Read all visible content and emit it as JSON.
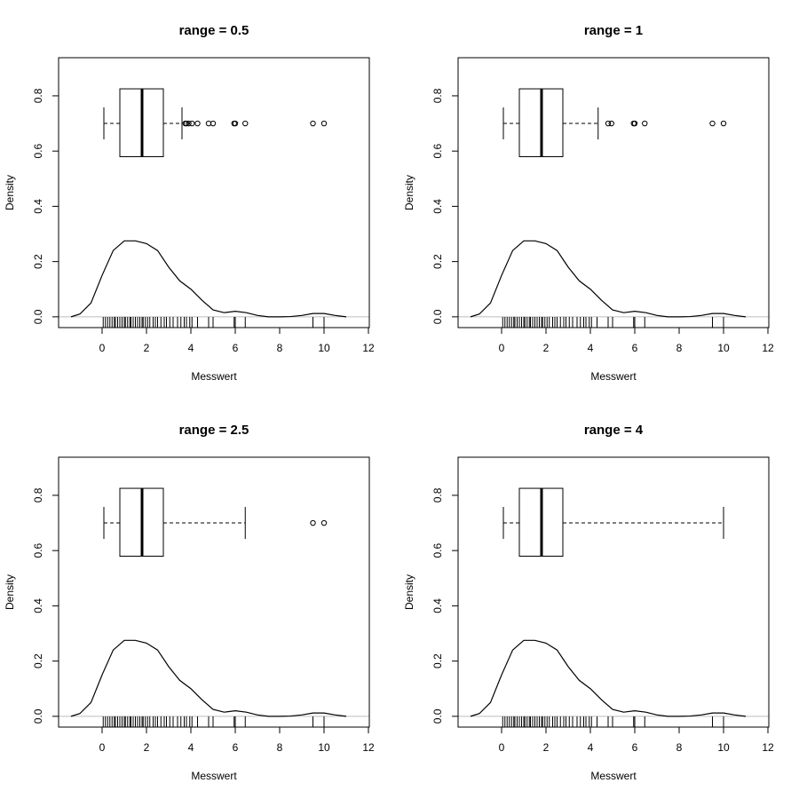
{
  "chart_data": [
    {
      "type": "density",
      "title": "range = 0.5",
      "xlabel": "Messwert",
      "ylabel": "Density",
      "xlim": [
        -1.96,
        12.04
      ],
      "ylim": [
        -0.039,
        0.938
      ],
      "xticks": [
        0,
        2,
        4,
        6,
        8,
        10,
        12
      ],
      "yticks": [
        {
          "value": 0,
          "label": "0.0"
        },
        0.2,
        0.4,
        0.6,
        0.8
      ],
      "x": [
        -1.4,
        -1,
        -0.5,
        0,
        0.5,
        1,
        1.5,
        2,
        2.5,
        3,
        3.5,
        4,
        4.5,
        5,
        5.5,
        6,
        6.5,
        7,
        7.5,
        8,
        8.5,
        9,
        9.5,
        10,
        10.5,
        11
      ],
      "values": [
        0,
        0.01,
        0.05,
        0.15,
        0.24,
        0.275,
        0.275,
        0.265,
        0.24,
        0.18,
        0.13,
        0.1,
        0.06,
        0.025,
        0.015,
        0.02,
        0.015,
        0.005,
        0,
        0,
        0.001,
        0.005,
        0.012,
        0.012,
        0.005,
        0
      ],
      "rug": [
        0.05,
        0.15,
        0.25,
        0.35,
        0.45,
        0.55,
        0.6,
        0.7,
        0.8,
        0.9,
        1.0,
        1.05,
        1.15,
        1.25,
        1.3,
        1.4,
        1.5,
        1.6,
        1.7,
        1.8,
        1.85,
        1.95,
        2.05,
        2.15,
        2.3,
        2.4,
        2.5,
        2.65,
        2.8,
        2.9,
        3.05,
        3.2,
        3.4,
        3.55,
        3.7,
        3.8,
        3.95,
        4.05,
        4.3,
        4.8,
        5.0,
        5.95,
        6.0,
        6.45,
        9.5,
        10.0
      ],
      "boxplot": {
        "at": 0.7,
        "whisker_low": 0.08,
        "q1": 0.8,
        "median": 1.8,
        "q3": 2.76,
        "whisker_high": 3.6,
        "outliers": [
          3.75,
          3.8,
          3.9,
          4.05,
          4.3,
          4.8,
          5.0,
          5.95,
          6.0,
          6.45,
          9.5,
          10.0
        ]
      }
    },
    {
      "type": "density",
      "title": "range = 1",
      "xlabel": "Messwert",
      "ylabel": "Density",
      "xlim": [
        -1.96,
        12.04
      ],
      "ylim": [
        -0.039,
        0.938
      ],
      "xticks": [
        0,
        2,
        4,
        6,
        8,
        10,
        12
      ],
      "yticks": [
        {
          "value": 0,
          "label": "0.0"
        },
        0.2,
        0.4,
        0.6,
        0.8
      ],
      "x": [
        -1.4,
        -1,
        -0.5,
        0,
        0.5,
        1,
        1.5,
        2,
        2.5,
        3,
        3.5,
        4,
        4.5,
        5,
        5.5,
        6,
        6.5,
        7,
        7.5,
        8,
        8.5,
        9,
        9.5,
        10,
        10.5,
        11
      ],
      "values": [
        0,
        0.01,
        0.05,
        0.15,
        0.24,
        0.275,
        0.275,
        0.265,
        0.24,
        0.18,
        0.13,
        0.1,
        0.06,
        0.025,
        0.015,
        0.02,
        0.015,
        0.005,
        0,
        0,
        0.001,
        0.005,
        0.012,
        0.012,
        0.005,
        0
      ],
      "rug": [
        0.05,
        0.15,
        0.25,
        0.35,
        0.45,
        0.55,
        0.6,
        0.7,
        0.8,
        0.9,
        1.0,
        1.05,
        1.15,
        1.25,
        1.3,
        1.4,
        1.5,
        1.6,
        1.7,
        1.8,
        1.85,
        1.95,
        2.05,
        2.15,
        2.3,
        2.4,
        2.5,
        2.65,
        2.8,
        2.9,
        3.05,
        3.2,
        3.4,
        3.55,
        3.7,
        3.8,
        3.95,
        4.05,
        4.3,
        4.8,
        5.0,
        5.95,
        6.0,
        6.45,
        9.5,
        10.0
      ],
      "boxplot": {
        "at": 0.7,
        "whisker_low": 0.08,
        "q1": 0.8,
        "median": 1.8,
        "q3": 2.76,
        "whisker_high": 4.35,
        "outliers": [
          4.8,
          4.95,
          5.95,
          6.0,
          6.45,
          9.5,
          10.0
        ]
      }
    },
    {
      "type": "density",
      "title": "range = 2.5",
      "xlabel": "Messwert",
      "ylabel": "Density",
      "xlim": [
        -1.96,
        12.04
      ],
      "ylim": [
        -0.039,
        0.938
      ],
      "xticks": [
        0,
        2,
        4,
        6,
        8,
        10,
        12
      ],
      "yticks": [
        {
          "value": 0,
          "label": "0.0"
        },
        0.2,
        0.4,
        0.6,
        0.8
      ],
      "x": [
        -1.4,
        -1,
        -0.5,
        0,
        0.5,
        1,
        1.5,
        2,
        2.5,
        3,
        3.5,
        4,
        4.5,
        5,
        5.5,
        6,
        6.5,
        7,
        7.5,
        8,
        8.5,
        9,
        9.5,
        10,
        10.5,
        11
      ],
      "values": [
        0,
        0.01,
        0.05,
        0.15,
        0.24,
        0.275,
        0.275,
        0.265,
        0.24,
        0.18,
        0.13,
        0.1,
        0.06,
        0.025,
        0.015,
        0.02,
        0.015,
        0.005,
        0,
        0,
        0.001,
        0.005,
        0.012,
        0.012,
        0.005,
        0
      ],
      "rug": [
        0.05,
        0.15,
        0.25,
        0.35,
        0.45,
        0.55,
        0.6,
        0.7,
        0.8,
        0.9,
        1.0,
        1.05,
        1.15,
        1.25,
        1.3,
        1.4,
        1.5,
        1.6,
        1.7,
        1.8,
        1.85,
        1.95,
        2.05,
        2.15,
        2.3,
        2.4,
        2.5,
        2.65,
        2.8,
        2.9,
        3.05,
        3.2,
        3.4,
        3.55,
        3.7,
        3.8,
        3.95,
        4.05,
        4.3,
        4.8,
        5.0,
        5.95,
        6.0,
        6.45,
        9.5,
        10.0
      ],
      "boxplot": {
        "at": 0.7,
        "whisker_low": 0.08,
        "q1": 0.8,
        "median": 1.8,
        "q3": 2.76,
        "whisker_high": 6.45,
        "outliers": [
          9.5,
          10.0
        ]
      }
    },
    {
      "type": "density",
      "title": "range = 4",
      "xlabel": "Messwert",
      "ylabel": "Density",
      "xlim": [
        -1.96,
        12.04
      ],
      "ylim": [
        -0.039,
        0.938
      ],
      "xticks": [
        0,
        2,
        4,
        6,
        8,
        10,
        12
      ],
      "yticks": [
        {
          "value": 0,
          "label": "0.0"
        },
        0.2,
        0.4,
        0.6,
        0.8
      ],
      "x": [
        -1.4,
        -1,
        -0.5,
        0,
        0.5,
        1,
        1.5,
        2,
        2.5,
        3,
        3.5,
        4,
        4.5,
        5,
        5.5,
        6,
        6.5,
        7,
        7.5,
        8,
        8.5,
        9,
        9.5,
        10,
        10.5,
        11
      ],
      "values": [
        0,
        0.01,
        0.05,
        0.15,
        0.24,
        0.275,
        0.275,
        0.265,
        0.24,
        0.18,
        0.13,
        0.1,
        0.06,
        0.025,
        0.015,
        0.02,
        0.015,
        0.005,
        0,
        0,
        0.001,
        0.005,
        0.012,
        0.012,
        0.005,
        0
      ],
      "rug": [
        0.05,
        0.15,
        0.25,
        0.35,
        0.45,
        0.55,
        0.6,
        0.7,
        0.8,
        0.9,
        1.0,
        1.05,
        1.15,
        1.25,
        1.3,
        1.4,
        1.5,
        1.6,
        1.7,
        1.8,
        1.85,
        1.95,
        2.05,
        2.15,
        2.3,
        2.4,
        2.5,
        2.65,
        2.8,
        2.9,
        3.05,
        3.2,
        3.4,
        3.55,
        3.7,
        3.8,
        3.95,
        4.05,
        4.3,
        4.8,
        5.0,
        5.95,
        6.0,
        6.45,
        9.5,
        10.0
      ],
      "boxplot": {
        "at": 0.7,
        "whisker_low": 0.08,
        "q1": 0.8,
        "median": 1.8,
        "q3": 2.76,
        "whisker_high": 10.0,
        "outliers": []
      }
    }
  ]
}
